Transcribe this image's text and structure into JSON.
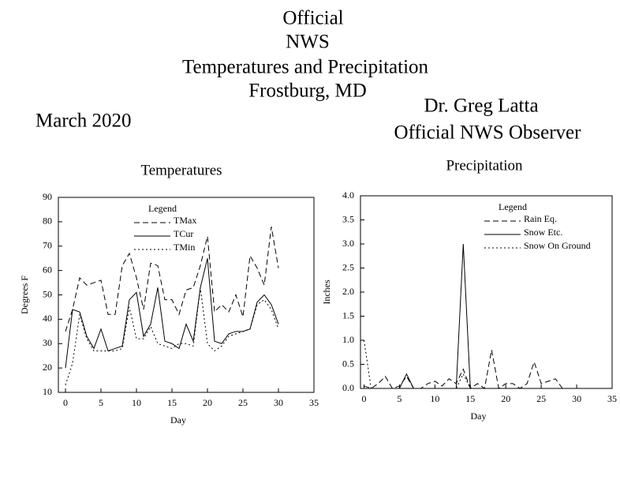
{
  "header": {
    "title_lines": [
      "Official",
      "NWS",
      "Temperatures and Precipitation",
      "Frostburg, MD"
    ],
    "period": "March 2020",
    "observer_lines": [
      "Dr. Greg Latta",
      "Official NWS Observer"
    ]
  },
  "chart_data": [
    {
      "type": "line",
      "title": "Temperatures",
      "x_label": "Day",
      "y_label": "Degrees F",
      "legend_title": "Legend",
      "x": [
        0,
        1,
        2,
        3,
        4,
        5,
        6,
        7,
        8,
        9,
        10,
        11,
        12,
        13,
        14,
        15,
        16,
        17,
        18,
        19,
        20,
        21,
        22,
        23,
        24,
        25,
        26,
        27,
        28,
        29,
        30
      ],
      "xlim": [
        -1,
        35
      ],
      "xticks": [
        0,
        5,
        10,
        15,
        20,
        25,
        30,
        35
      ],
      "ylim": [
        10,
        90
      ],
      "yticks": [
        10,
        20,
        30,
        40,
        50,
        60,
        70,
        80,
        90
      ],
      "series": [
        {
          "name": "TMax",
          "color": "#000000",
          "dash": "7,4",
          "values": [
            35,
            44,
            57,
            54,
            55,
            56,
            42,
            42,
            62,
            67,
            57,
            44,
            63,
            62,
            48,
            48,
            42,
            52,
            53,
            62,
            74,
            43,
            46,
            43,
            50,
            41,
            66,
            61,
            54,
            78,
            61
          ]
        },
        {
          "name": "TCur",
          "color": "#000000",
          "dash": "none",
          "values": [
            20,
            44,
            43,
            33,
            28,
            36,
            27,
            28,
            29,
            48,
            51,
            33,
            38,
            53,
            31,
            30,
            28,
            38,
            31,
            53,
            65,
            31,
            30,
            34,
            35,
            35,
            36,
            47,
            50,
            46,
            38
          ]
        },
        {
          "name": "TMin",
          "color": "#000000",
          "dash": "2,3",
          "values": [
            13,
            22,
            42,
            32,
            27,
            27,
            27,
            27,
            28,
            45,
            32,
            32,
            37,
            30,
            29,
            28,
            30,
            30,
            29,
            53,
            30,
            27,
            29,
            33,
            34,
            35,
            36,
            46,
            48,
            44,
            36
          ]
        }
      ]
    },
    {
      "type": "line",
      "title": "Precipitation",
      "x_label": "Day",
      "y_label": "Inches",
      "legend_title": "Legend",
      "x": [
        0,
        1,
        2,
        3,
        4,
        5,
        6,
        7,
        8,
        9,
        10,
        11,
        12,
        13,
        14,
        15,
        16,
        17,
        18,
        19,
        20,
        21,
        22,
        23,
        24,
        25,
        26,
        27,
        28,
        29,
        30
      ],
      "xlim": [
        -0.5,
        35
      ],
      "xticks": [
        0,
        5,
        10,
        15,
        20,
        25,
        30,
        35
      ],
      "ylim": [
        0,
        4
      ],
      "yticks": [
        {
          "value": 0,
          "label": "0.0"
        },
        {
          "value": 0.5,
          "label": "0.5"
        },
        {
          "value": 1,
          "label": "1.0"
        },
        {
          "value": 1.5,
          "label": "1.5"
        },
        {
          "value": 2,
          "label": "2.0"
        },
        {
          "value": 2.5,
          "label": "2.5"
        },
        {
          "value": 3,
          "label": "3.0"
        },
        {
          "value": 3.5,
          "label": "3.5"
        },
        {
          "value": 4,
          "label": "4.0"
        }
      ],
      "series": [
        {
          "name": "Rain Eq.",
          "color": "#000000",
          "dash": "7,4",
          "values": [
            0.05,
            0,
            0.1,
            0.25,
            0,
            0.05,
            0.25,
            0,
            0,
            0.1,
            0.15,
            0.05,
            0.2,
            0.1,
            0.4,
            0,
            0.1,
            0,
            0.8,
            0,
            0.1,
            0.1,
            0,
            0.1,
            0.55,
            0.1,
            0.15,
            0.2,
            0,
            0,
            0
          ]
        },
        {
          "name": "Snow Etc.",
          "color": "#000000",
          "dash": "none",
          "values": [
            0,
            0,
            0,
            0,
            0,
            0,
            0.3,
            0,
            0,
            0,
            0,
            0,
            0,
            0,
            3,
            0,
            0,
            0,
            0,
            0,
            0,
            0,
            0,
            0,
            0,
            0,
            0,
            0,
            0,
            0,
            0
          ]
        },
        {
          "name": "Snow On Ground",
          "color": "#000000",
          "dash": "2,3",
          "values": [
            1,
            0,
            0,
            0,
            0,
            0,
            0,
            0,
            0,
            0,
            0,
            0,
            0,
            0,
            0.3,
            0,
            0,
            0,
            0,
            0,
            0,
            0,
            0,
            0,
            0,
            0,
            0,
            0,
            0,
            0,
            0
          ]
        }
      ]
    }
  ]
}
